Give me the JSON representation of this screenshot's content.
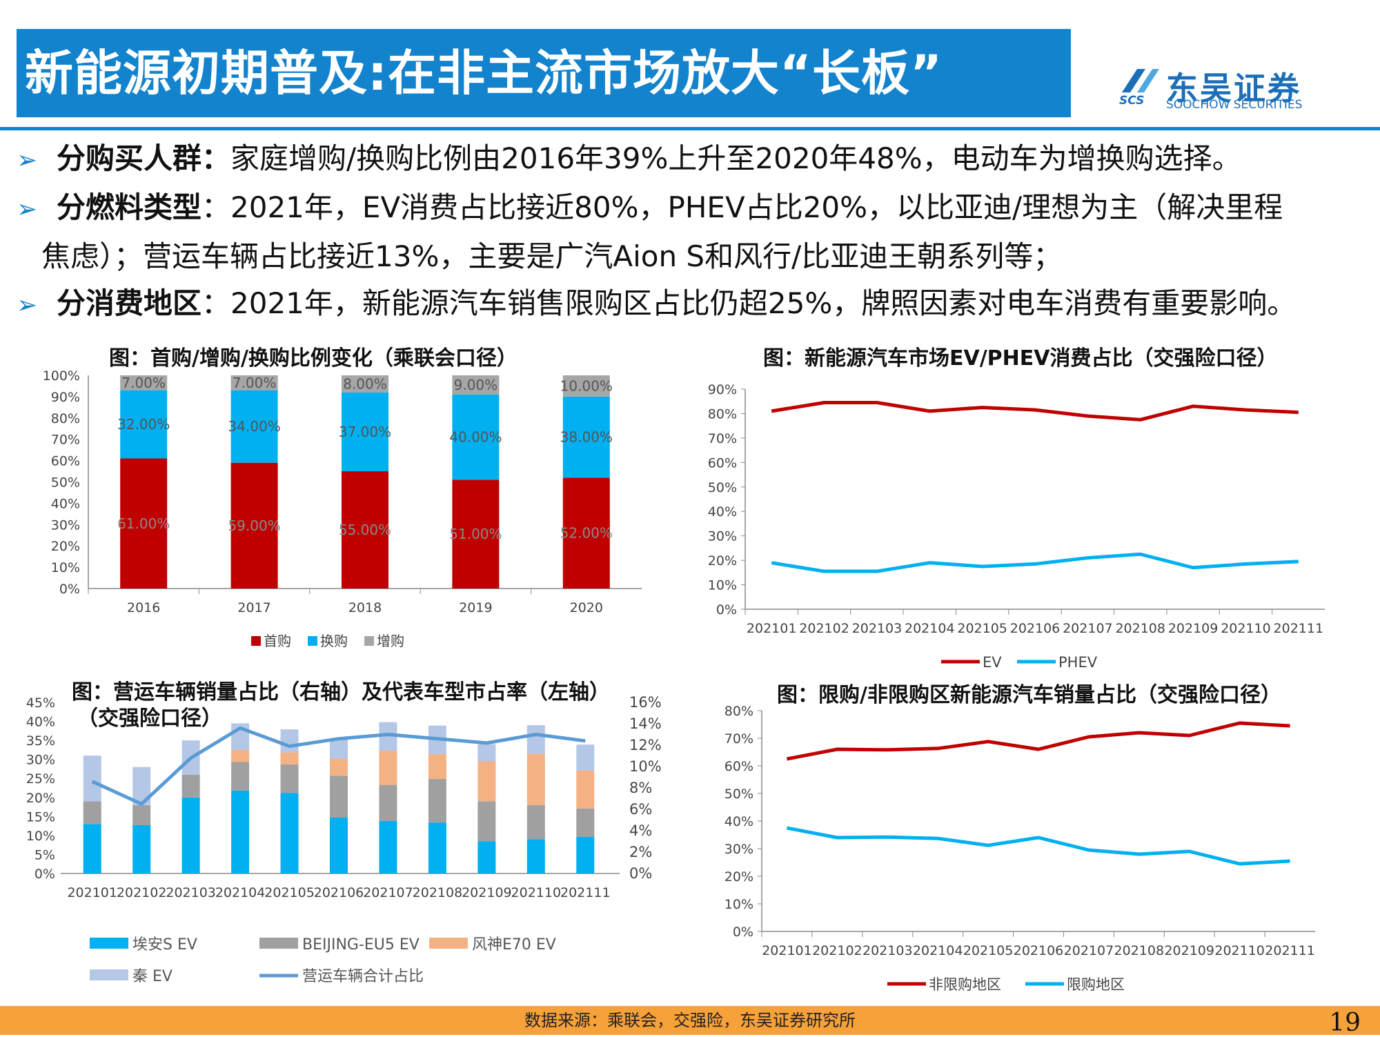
{
  "header": {
    "title": "新能源初期普及:在非主流市场放大“长板”",
    "logo_cn": "东吴证券",
    "logo_en": "SOOCHOW SECURITIES",
    "logo_abbr": "SCS"
  },
  "bullets": [
    {
      "keyword": "分购买人群：",
      "text": "家庭增购/换购比例由2016年39%上升至2020年48%，电动车为增换购选择。"
    },
    {
      "keyword": "分燃料类型",
      "text": "：2021年，EV消费占比接近80%，PHEV占比20%，以比亚迪/理想为主（解决里程",
      "continuation": "焦虑）；营运车辆占比接近13%，主要是广汽Aion S和风行/比亚迪王朝系列等；"
    },
    {
      "keyword": "分消费地区",
      "text": "：2021年，新能源汽车销售限购区占比仍超25%，牌照因素对电车消费有重要影响。"
    }
  ],
  "footer": {
    "source": "数据来源：乘联会，交强险，东吴证券研究所",
    "page": "19"
  },
  "colors": {
    "red": "#C00000",
    "blue": "#00B0F0",
    "gray": "#A6A6A6",
    "accent": "#1283CC",
    "footer": "#F7A13A"
  },
  "chart_data": [
    {
      "type": "bar",
      "stacked": true,
      "title": "图：首购/增购/换购比例变化（乘联会口径）",
      "categories": [
        "2016",
        "2017",
        "2018",
        "2019",
        "2020"
      ],
      "series": [
        {
          "name": "首购",
          "values": [
            61,
            59,
            55,
            51,
            52
          ],
          "labels": [
            "61.00%",
            "59.00%",
            "55.00%",
            "51.00%",
            "52.00%"
          ]
        },
        {
          "name": "换购",
          "values": [
            32,
            34,
            37,
            40,
            38
          ],
          "labels": [
            "32.00%",
            "34.00%",
            "37.00%",
            "40.00%",
            "38.00%"
          ]
        },
        {
          "name": "增购",
          "values": [
            7,
            7,
            8,
            9,
            10
          ],
          "labels": [
            "7.00%",
            "7.00%",
            "8.00%",
            "9.00%",
            "10.00%"
          ]
        }
      ],
      "ylim": [
        0,
        100
      ],
      "yticks": [
        "0%",
        "10%",
        "20%",
        "30%",
        "40%",
        "50%",
        "60%",
        "70%",
        "80%",
        "90%",
        "100%"
      ],
      "legend": "bottom"
    },
    {
      "type": "line",
      "title": "图：新能源汽车市场EV/PHEV消费占比（交强险口径）",
      "categories": [
        "202101",
        "202102",
        "202103",
        "202104",
        "202105",
        "202106",
        "202107",
        "202108",
        "202109",
        "202110",
        "202111"
      ],
      "series": [
        {
          "name": "EV",
          "values": [
            81,
            84.5,
            84.5,
            81,
            82.5,
            81.5,
            79,
            77.5,
            83,
            81.5,
            80.5
          ]
        },
        {
          "name": "PHEV",
          "values": [
            19,
            15.5,
            15.5,
            19,
            17.5,
            18.5,
            21,
            22.5,
            17,
            18.5,
            19.5
          ]
        }
      ],
      "ylim": [
        0,
        90
      ],
      "yticks": [
        "0%",
        "10%",
        "20%",
        "30%",
        "40%",
        "50%",
        "60%",
        "70%",
        "80%",
        "90%"
      ],
      "legend": "bottom"
    },
    {
      "type": "bar",
      "stacked": true,
      "title": "图：营运车辆销量占比（右轴）及代表车型市占率（左轴）",
      "title_line2": "（交强险口径）",
      "categories": [
        "202101",
        "202102",
        "202103",
        "202104",
        "202105",
        "202106",
        "202107",
        "202108",
        "202109",
        "202110",
        "202111"
      ],
      "series": [
        {
          "name": "埃安S EV",
          "values": [
            13,
            12.7,
            20,
            21.8,
            21.2,
            14.7,
            13.8,
            13.4,
            8.5,
            9,
            9.6
          ]
        },
        {
          "name": "BEIJING-EU5 EV",
          "values": [
            6,
            5.3,
            6,
            7.5,
            7.5,
            11,
            9.5,
            11.5,
            10.5,
            9,
            7.5
          ]
        },
        {
          "name": "风神E70 EV",
          "values": [
            0,
            0,
            0,
            3.2,
            3.2,
            4.5,
            9,
            6.5,
            10.5,
            13.5,
            10
          ]
        },
        {
          "name": "秦 EV",
          "values": [
            12,
            10,
            9,
            7,
            6,
            5,
            7.5,
            7.5,
            4.5,
            7.5,
            6.8
          ]
        },
        {
          "name": "营运车辆合计占比",
          "axis": "right",
          "values": [
            8.6,
            6.5,
            10.8,
            13.6,
            11.9,
            12.6,
            13,
            12.6,
            12.2,
            13,
            12.4
          ]
        }
      ],
      "ylim": [
        0,
        45
      ],
      "yticks": [
        "0%",
        "5%",
        "10%",
        "15%",
        "20%",
        "25%",
        "30%",
        "35%",
        "40%",
        "45%"
      ],
      "y2lim": [
        0,
        16
      ],
      "y2ticks": [
        "0%",
        "2%",
        "4%",
        "6%",
        "8%",
        "10%",
        "12%",
        "14%",
        "16%"
      ],
      "legend": "bottom"
    },
    {
      "type": "line",
      "title": "图：限购/非限购区新能源汽车销量占比（交强险口径）",
      "categories": [
        "202101",
        "202102",
        "202103",
        "202104",
        "202105",
        "202106",
        "202107",
        "202108",
        "202109",
        "202110",
        "202111"
      ],
      "series": [
        {
          "name": "非限购地区",
          "values": [
            62.5,
            66,
            65.8,
            66.3,
            68.8,
            66,
            70.5,
            72,
            71,
            75.5,
            74.5
          ]
        },
        {
          "name": "限购地区",
          "values": [
            37.5,
            34,
            34.2,
            33.7,
            31.2,
            34,
            29.5,
            28,
            29,
            24.5,
            25.5
          ]
        }
      ],
      "ylim": [
        0,
        80
      ],
      "yticks": [
        "0%",
        "10%",
        "20%",
        "30%",
        "40%",
        "50%",
        "60%",
        "70%",
        "80%"
      ],
      "legend": "bottom"
    }
  ]
}
